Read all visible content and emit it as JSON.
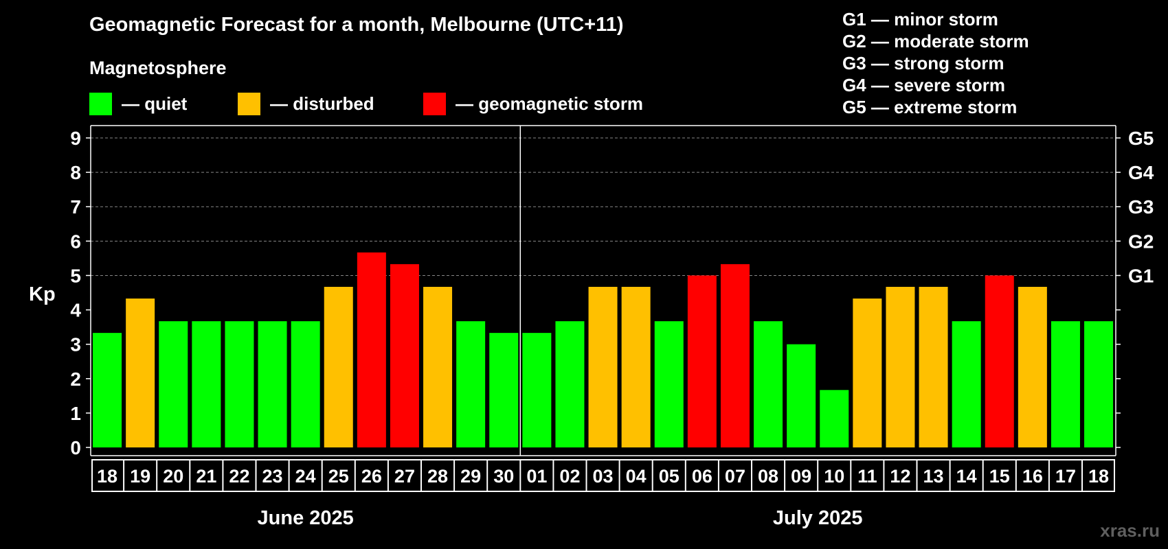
{
  "title": "Geomagnetic Forecast for a month, Melbourne (UTC+11)",
  "legend": {
    "heading": "Magnetosphere",
    "items": [
      {
        "label": "— quiet",
        "color": "#00ff00"
      },
      {
        "label": "— disturbed",
        "color": "#ffc000"
      },
      {
        "label": "— geomagnetic storm",
        "color": "#ff0000"
      }
    ]
  },
  "g_scale_legend": [
    "G1 — minor storm",
    "G2 — moderate storm",
    "G3 — strong storm",
    "G4 — severe storm",
    "G5 — extreme storm"
  ],
  "watermark": "xras.ru",
  "colors": {
    "background": "#000000",
    "quiet": "#00ff00",
    "disturbed": "#ffc000",
    "storm": "#ff0000",
    "axis": "#ffffff",
    "grid": "#888888",
    "watermark": "#5f5f5f"
  },
  "chart_data": {
    "type": "bar",
    "ylabel": "Kp",
    "ylim": [
      0,
      9
    ],
    "y_ticks": [
      "0",
      "1",
      "2",
      "3",
      "4",
      "5",
      "6",
      "7",
      "8",
      "9"
    ],
    "grid": "dashed horizontal lines at Kp 5 to 9",
    "right_axis_labels": [
      {
        "kp": 5,
        "label": "G1"
      },
      {
        "kp": 6,
        "label": "G2"
      },
      {
        "kp": 7,
        "label": "G3"
      },
      {
        "kp": 8,
        "label": "G4"
      },
      {
        "kp": 9,
        "label": "G5"
      }
    ],
    "month_groups": [
      {
        "label": "June 2025",
        "count": 13
      },
      {
        "label": "July 2025",
        "count": 18
      }
    ],
    "categories": [
      "18",
      "19",
      "20",
      "21",
      "22",
      "23",
      "24",
      "25",
      "26",
      "27",
      "28",
      "29",
      "30",
      "01",
      "02",
      "03",
      "04",
      "05",
      "06",
      "07",
      "08",
      "09",
      "10",
      "11",
      "12",
      "13",
      "14",
      "15",
      "16",
      "17",
      "18"
    ],
    "values": [
      3.33,
      4.33,
      3.67,
      3.67,
      3.67,
      3.67,
      3.67,
      4.67,
      5.67,
      5.33,
      4.67,
      3.67,
      3.33,
      3.33,
      3.67,
      4.67,
      4.67,
      3.67,
      5.0,
      5.33,
      3.67,
      3.0,
      1.67,
      4.33,
      4.67,
      4.67,
      3.67,
      5.0,
      4.67,
      3.67,
      3.67
    ],
    "levels": [
      "quiet",
      "disturbed",
      "quiet",
      "quiet",
      "quiet",
      "quiet",
      "quiet",
      "disturbed",
      "storm",
      "storm",
      "disturbed",
      "quiet",
      "quiet",
      "quiet",
      "quiet",
      "disturbed",
      "disturbed",
      "quiet",
      "storm",
      "storm",
      "quiet",
      "quiet",
      "quiet",
      "disturbed",
      "disturbed",
      "disturbed",
      "quiet",
      "storm",
      "disturbed",
      "quiet",
      "quiet"
    ]
  }
}
